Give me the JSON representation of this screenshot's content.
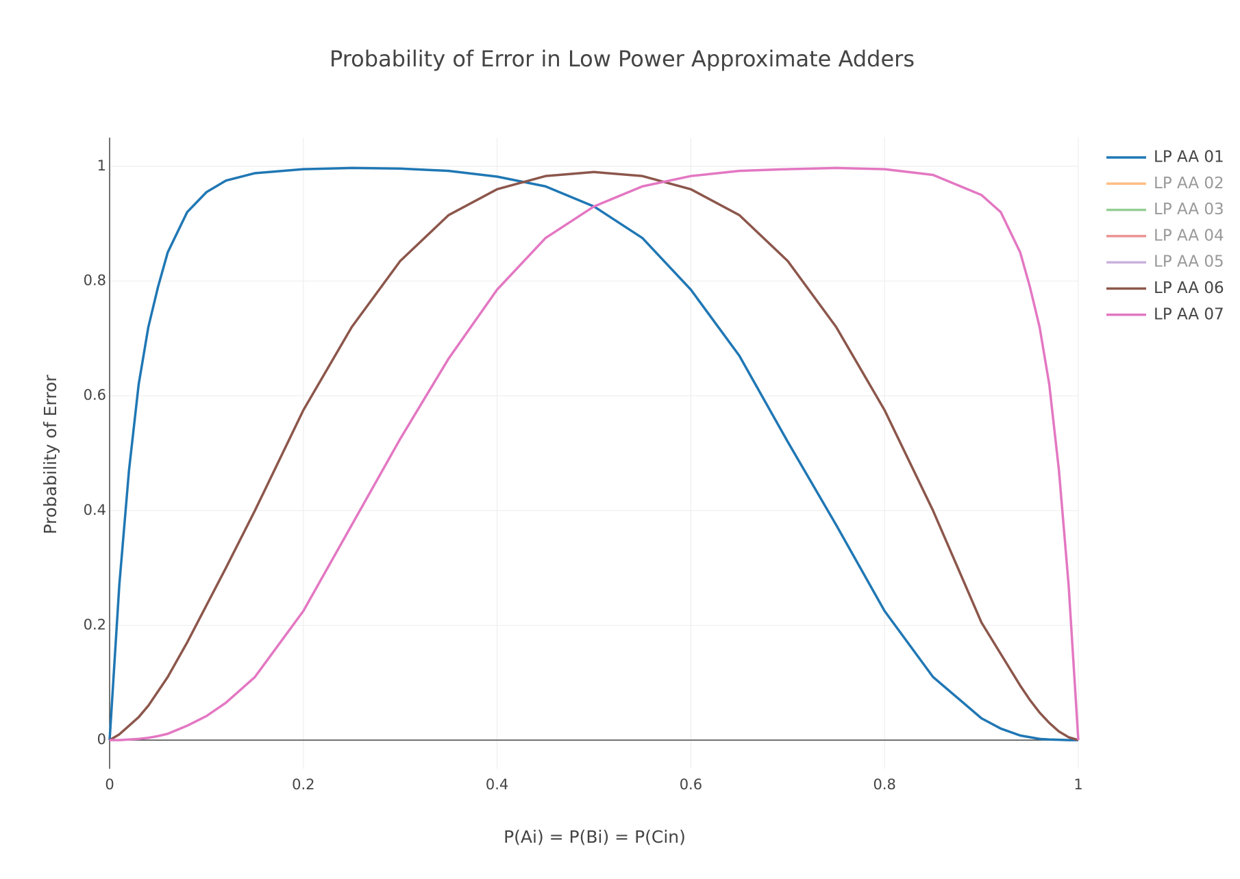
{
  "chart_data": {
    "type": "line",
    "title": "Probability of Error in Low Power Approximate Adders",
    "x_label": "P(Ai) = P(Bi) = P(Cin)",
    "y_label": "Probability of Error",
    "x": [
      0,
      0.01,
      0.02,
      0.03,
      0.04,
      0.05,
      0.06,
      0.08,
      0.1,
      0.12,
      0.15,
      0.2,
      0.25,
      0.3,
      0.35,
      0.4,
      0.45,
      0.5,
      0.55,
      0.6,
      0.65,
      0.7,
      0.75,
      0.8,
      0.85,
      0.9,
      0.92,
      0.94,
      0.95,
      0.96,
      0.97,
      0.98,
      0.99,
      1
    ],
    "series": [
      {
        "name": "LP AA 01",
        "color": "#1f77b4",
        "values": [
          0,
          0.27,
          0.47,
          0.62,
          0.72,
          0.79,
          0.85,
          0.92,
          0.955,
          0.975,
          0.988,
          0.995,
          0.997,
          0.996,
          0.992,
          0.982,
          0.965,
          0.93,
          0.875,
          0.785,
          0.67,
          0.52,
          0.375,
          0.225,
          0.11,
          0.038,
          0.02,
          0.008,
          0.005,
          0.002,
          0.001,
          0.0005,
          0,
          0
        ]
      },
      {
        "name": "LP AA 02",
        "color": "#ff7f0e",
        "visible": "legendonly"
      },
      {
        "name": "LP AA 03",
        "color": "#2ca02c",
        "visible": "legendonly"
      },
      {
        "name": "LP AA 04",
        "color": "#d62728",
        "visible": "legendonly"
      },
      {
        "name": "LP AA 05",
        "color": "#9467bd",
        "visible": "legendonly"
      },
      {
        "name": "LP AA 06",
        "color": "#8c564b",
        "values": [
          0,
          0.01,
          0.025,
          0.04,
          0.06,
          0.085,
          0.11,
          0.17,
          0.235,
          0.3,
          0.4,
          0.575,
          0.72,
          0.835,
          0.915,
          0.96,
          0.983,
          0.99,
          0.983,
          0.96,
          0.915,
          0.835,
          0.72,
          0.575,
          0.4,
          0.205,
          0.15,
          0.095,
          0.07,
          0.048,
          0.03,
          0.015,
          0.005,
          0
        ]
      },
      {
        "name": "LP AA 07",
        "color": "#e377c2",
        "values": [
          0,
          0,
          0.001,
          0.002,
          0.004,
          0.007,
          0.011,
          0.025,
          0.042,
          0.065,
          0.11,
          0.225,
          0.375,
          0.525,
          0.665,
          0.785,
          0.875,
          0.93,
          0.965,
          0.983,
          0.992,
          0.995,
          0.997,
          0.995,
          0.985,
          0.95,
          0.92,
          0.85,
          0.79,
          0.72,
          0.62,
          0.47,
          0.27,
          0
        ]
      }
    ],
    "xlim": [
      0,
      1
    ],
    "ylim": [
      -0.05,
      1.05
    ],
    "xticks": [
      0,
      0.2,
      0.4,
      0.6,
      0.8,
      1
    ],
    "yticks": [
      0,
      0.2,
      0.4,
      0.6,
      0.8,
      1
    ],
    "grid": true,
    "legend": "right"
  }
}
